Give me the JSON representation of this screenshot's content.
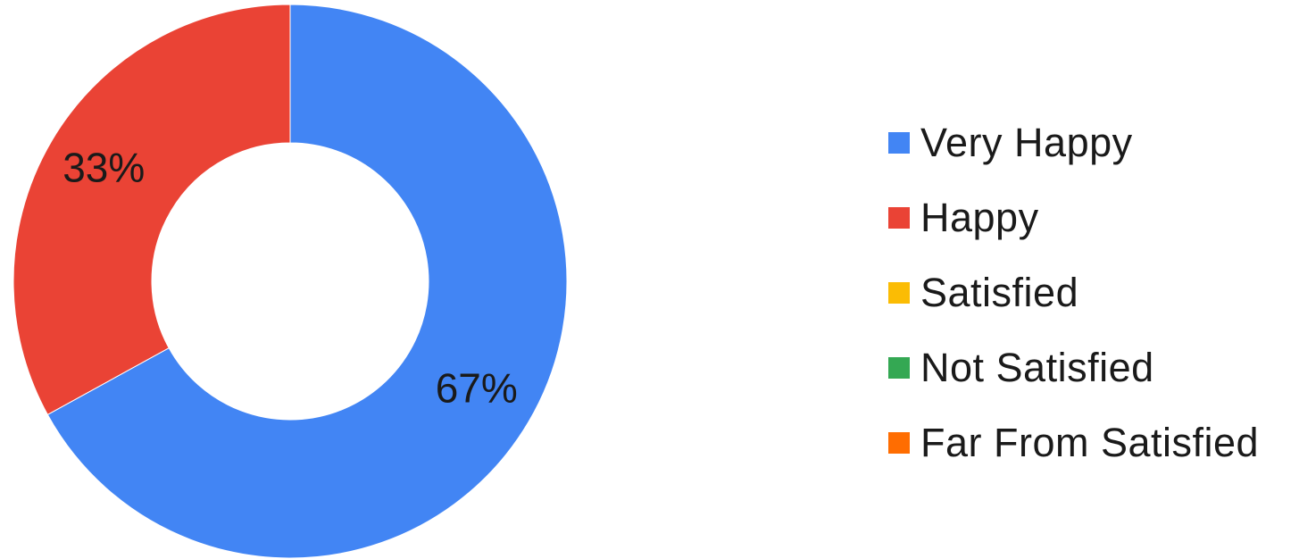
{
  "chart_data": {
    "type": "pie",
    "variant": "donut",
    "legend_position": "right",
    "categories": [
      "Very Happy",
      "Happy",
      "Satisfied",
      "Not Satisfied",
      "Far From Satisfied"
    ],
    "values": [
      67,
      33,
      0,
      0,
      0
    ],
    "value_labels": [
      "67%",
      "33%",
      "",
      "",
      ""
    ],
    "colors": [
      "#4285F4",
      "#EA4335",
      "#FBBC04",
      "#34A853",
      "#FF6D01"
    ]
  }
}
